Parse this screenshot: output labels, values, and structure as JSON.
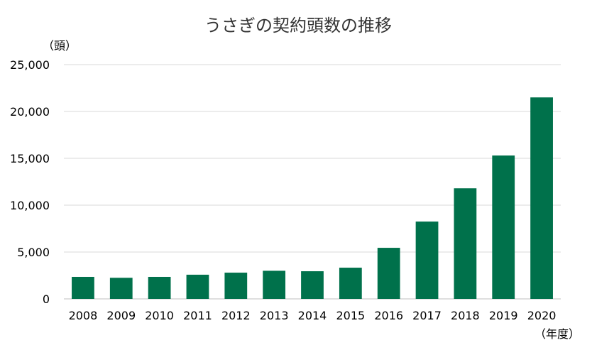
{
  "chart_data": {
    "type": "bar",
    "title": "うさぎの契約頭数の推移",
    "ylabel": "（頭）",
    "xlabel": "（年度）",
    "categories": [
      "2008",
      "2009",
      "2010",
      "2011",
      "2012",
      "2013",
      "2014",
      "2015",
      "2016",
      "2017",
      "2018",
      "2019",
      "2020"
    ],
    "values": [
      2350,
      2250,
      2350,
      2580,
      2800,
      3000,
      2950,
      3330,
      5450,
      8250,
      11800,
      15300,
      21500
    ],
    "ylim": [
      0,
      25000
    ],
    "yticks": [
      0,
      5000,
      10000,
      15000,
      20000,
      25000
    ],
    "ytick_labels": [
      "0",
      "5,000",
      "10,000",
      "15,000",
      "20,000",
      "25,000"
    ],
    "grid": true,
    "colors": {
      "bar": "#00714b",
      "grid": "#d9d9d9",
      "axis": "#bfbfbf"
    }
  }
}
